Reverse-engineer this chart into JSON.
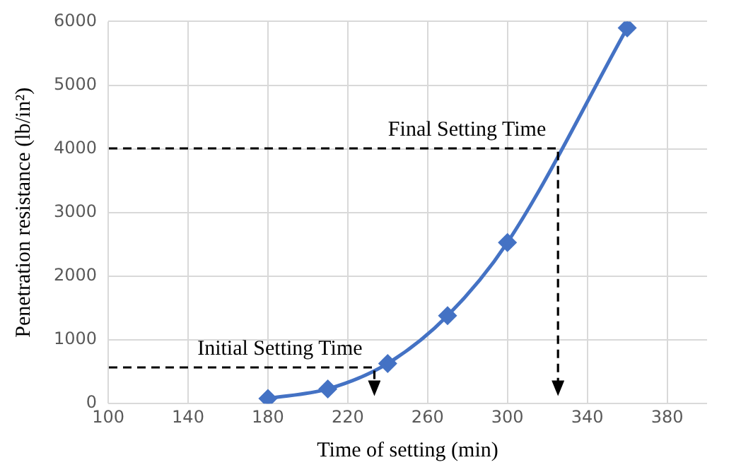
{
  "chart_data": {
    "type": "line",
    "xlabel": "Time of setting (min)",
    "ylabel": "Penetration resistance (lb/in²)",
    "xlim": [
      100,
      400
    ],
    "xticks": [
      100,
      140,
      180,
      220,
      260,
      300,
      340,
      380
    ],
    "ylim": [
      0,
      6000
    ],
    "yticks": [
      0,
      1000,
      2000,
      3000,
      4000,
      5000,
      6000
    ],
    "grid": true,
    "legend": false,
    "series": [
      {
        "color": "#4472c4",
        "x": [
          180,
          210,
          240,
          270,
          300,
          360
        ],
        "values": [
          80,
          230,
          630,
          1380,
          2530,
          5900
        ],
        "marker": "diamond",
        "line_style": "solid"
      }
    ],
    "annotations": [
      {
        "text": "Initial Setting Time",
        "x": 233,
        "y": 560
      },
      {
        "text": "Final Setting Time",
        "x": 325,
        "y": 4000
      }
    ]
  }
}
